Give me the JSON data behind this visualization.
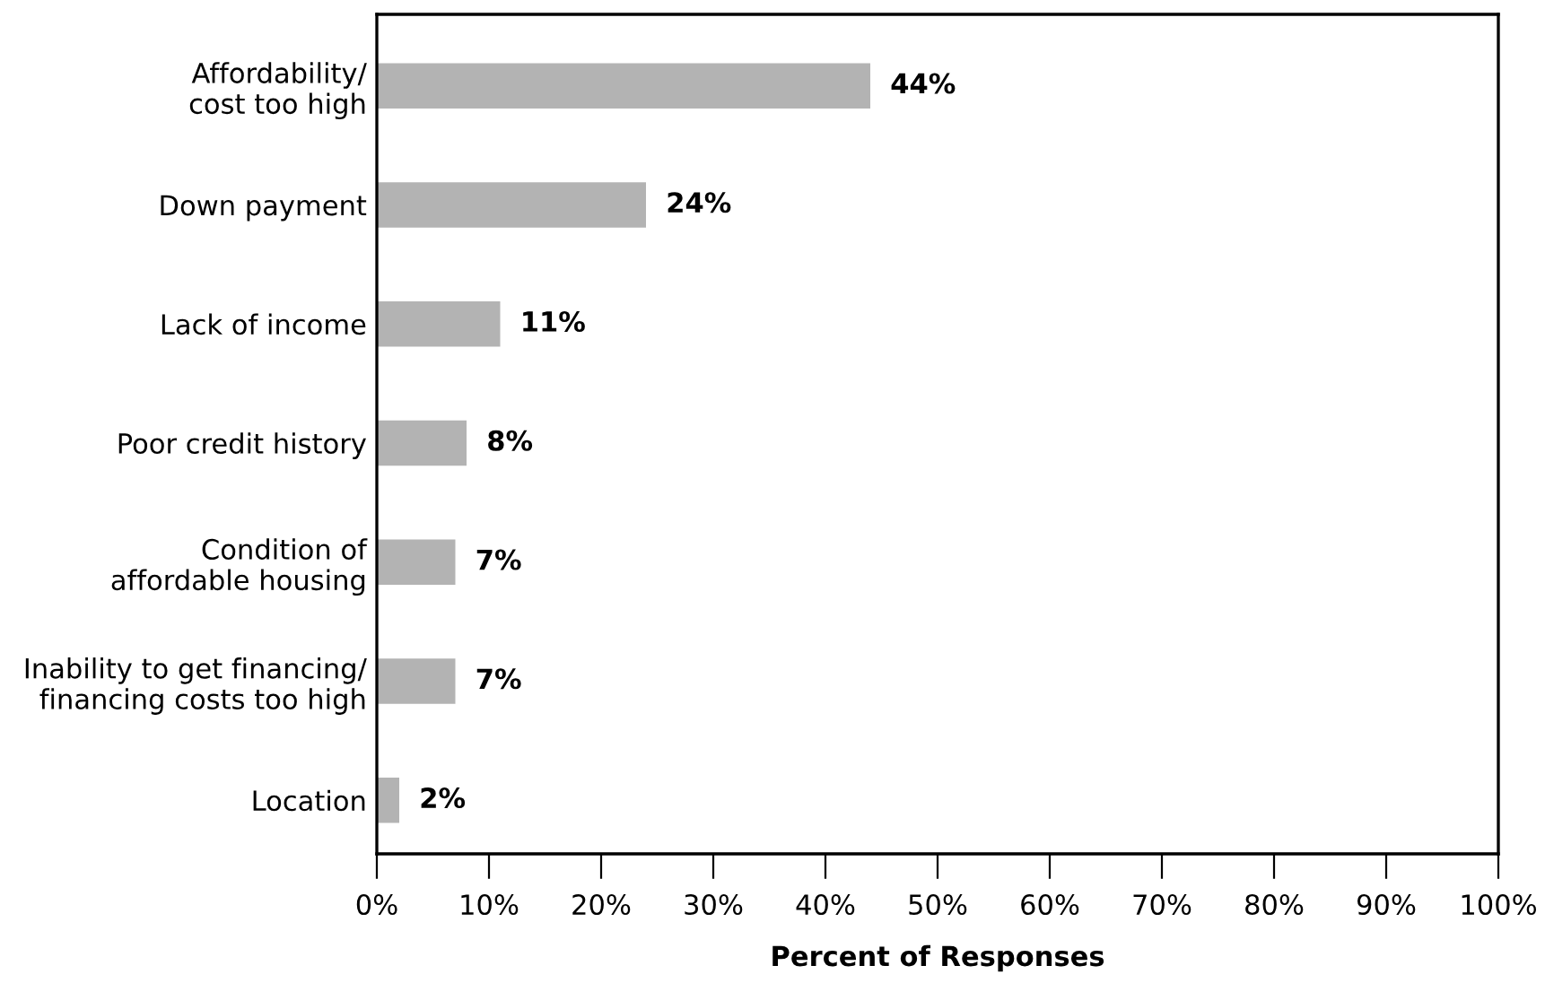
{
  "chart_data": {
    "type": "bar",
    "orientation": "horizontal",
    "xlabel": "Percent of Responses",
    "categories": [
      "Affordability/\ncost too high",
      "Down payment",
      "Lack of income",
      "Poor credit history",
      "Condition of\naffordable housing",
      "Inability to get financing/\nfinancing costs too high",
      "Location"
    ],
    "values": [
      44,
      24,
      11,
      8,
      7,
      7,
      2
    ],
    "color": "#b3b3b3",
    "value_labels": [
      "44%",
      "24%",
      "11%",
      "8%",
      "7%",
      "7%",
      "2%"
    ],
    "xlim": [
      0,
      100
    ],
    "xticks": [
      {
        "value": 0,
        "label": "0%"
      },
      {
        "value": 10,
        "label": "10%"
      },
      {
        "value": 20,
        "label": "20%"
      },
      {
        "value": 30,
        "label": "30%"
      },
      {
        "value": 40,
        "label": "40%"
      },
      {
        "value": 50,
        "label": "50%"
      },
      {
        "value": 60,
        "label": "60%"
      },
      {
        "value": 70,
        "label": "70%"
      },
      {
        "value": 80,
        "label": "80%"
      },
      {
        "value": 90,
        "label": "90%"
      },
      {
        "value": 100,
        "label": "100%"
      }
    ],
    "grid": false
  }
}
